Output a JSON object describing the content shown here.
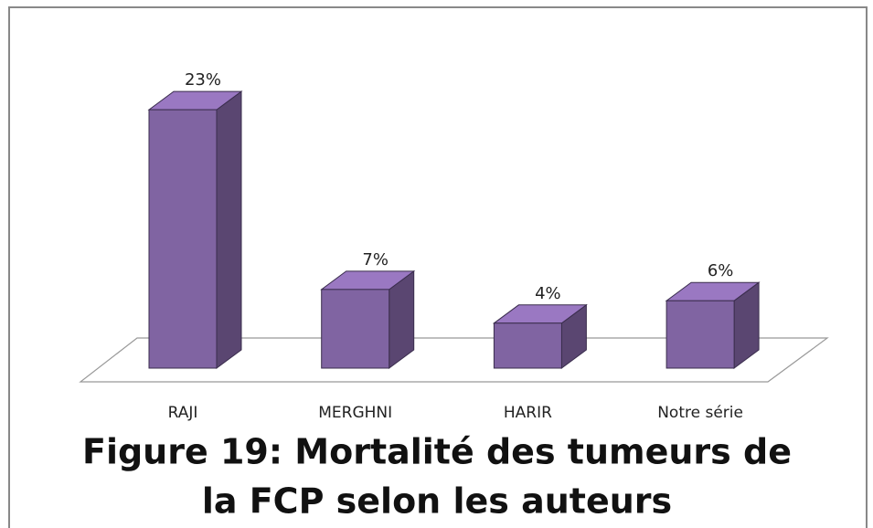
{
  "chart_data": {
    "type": "bar",
    "title": [
      "Figure 19: Mortalité des tumeurs de",
      "la FCP selon les auteurs"
    ],
    "categories": [
      "RAJI",
      "MERGHNI",
      "HARIR",
      "Notre série"
    ],
    "values": [
      23,
      7,
      4,
      6
    ],
    "value_labels": [
      "23%",
      "7%",
      "4%",
      "6%"
    ],
    "color": "#8064a2"
  }
}
